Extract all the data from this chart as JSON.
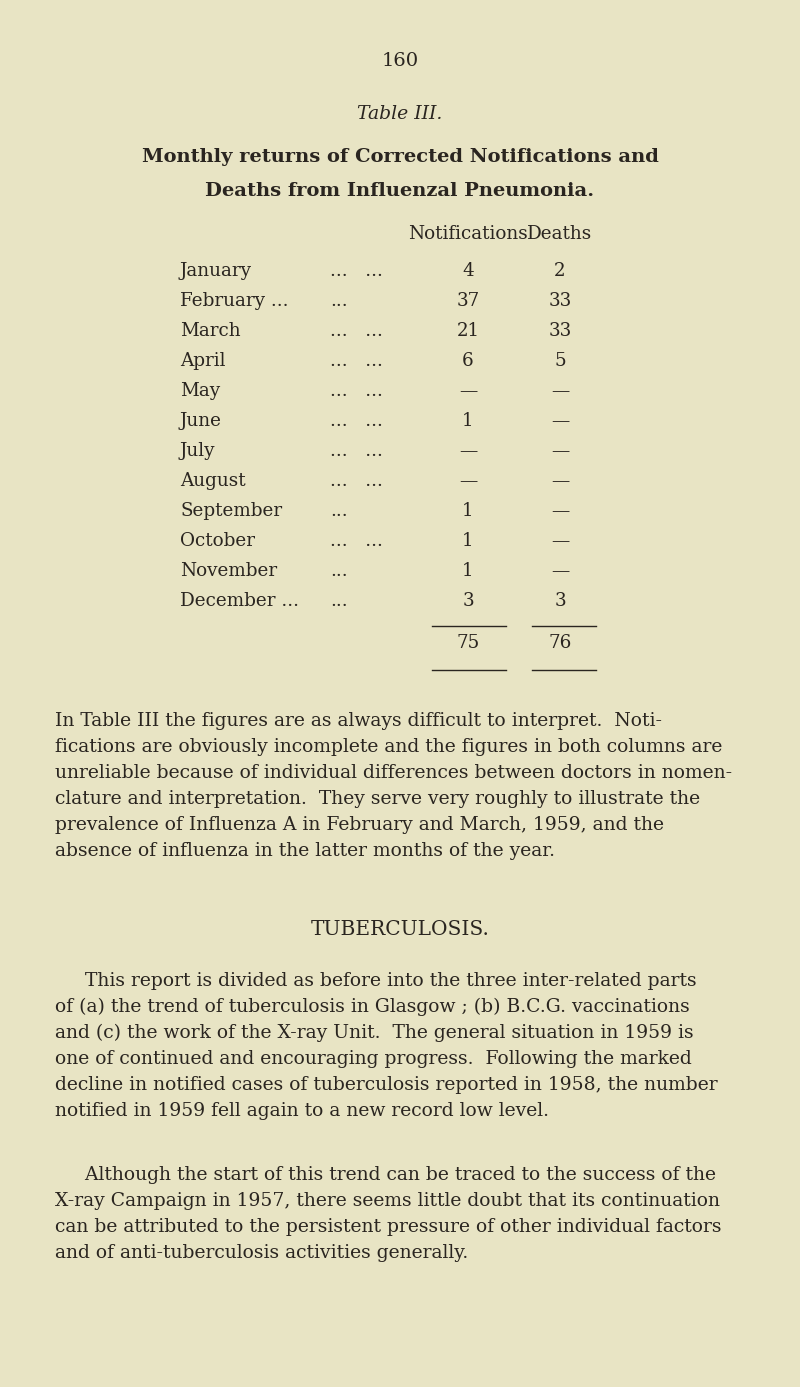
{
  "page_number": "160",
  "table_title_line1": "Table III.",
  "table_title_line2": "Monthly returns of Corrected Notifications and",
  "table_title_line3": "Deaths from Influenzal Pneumonia.",
  "col_header1": "Notifications",
  "col_header2": "Deaths",
  "months_display": [
    [
      "January",
      "...   ..."
    ],
    [
      "February ...",
      "..."
    ],
    [
      "March",
      "...   ..."
    ],
    [
      "April",
      "...   ..."
    ],
    [
      "May",
      "...   ..."
    ],
    [
      "June",
      "...   ..."
    ],
    [
      "July",
      "...   ..."
    ],
    [
      "August",
      "...   ..."
    ],
    [
      "September",
      "..."
    ],
    [
      "October",
      "...   ..."
    ],
    [
      "November",
      "..."
    ],
    [
      "December ...",
      "..."
    ]
  ],
  "notifications": [
    "4",
    "37",
    "21",
    "6",
    "—",
    "1",
    "—",
    "—",
    "1",
    "1",
    "1",
    "3"
  ],
  "deaths": [
    "2",
    "33",
    "33",
    "5",
    "—",
    "—",
    "—",
    "—",
    "—",
    "—",
    "—",
    "3"
  ],
  "total_notifications": "75",
  "total_deaths": "76",
  "para1_lines": [
    "In Table III the figures are as always difficult to interpret.  Noti-",
    "fications are obviously incomplete and the figures in both columns are",
    "unreliable because of individual differences between doctors in nomen-",
    "clature and interpretation.  They serve very roughly to illustrate the",
    "prevalence of Influenza A in February and March, 1959, and the",
    "absence of influenza in the latter months of the year."
  ],
  "section_title": "TUBERCULOSIS.",
  "para2_lines": [
    "     This report is divided as before into the three inter-related parts",
    "of (a) the trend of tuberculosis in Glasgow ; (b) B.C.G. vaccinations",
    "and (c) the work of the X-ray Unit.  The general situation in 1959 is",
    "one of continued and encouraging progress.  Following the marked",
    "decline in notified cases of tuberculosis reported in 1958, the number",
    "notified in 1959 fell again to a new record low level."
  ],
  "para3_lines": [
    "     Although the start of this trend can be traced to the success of the",
    "X-ray Campaign in 1957, there seems little doubt that its continuation",
    "can be attributed to the persistent pressure of other individual factors",
    "and of anti-tuberculosis activities generally."
  ],
  "bg_color": "#e8e4c4",
  "text_color": "#2a2520",
  "font_size_body": 13.5,
  "font_size_table": 13.2,
  "font_size_title_italic": 13.5,
  "font_size_title_bold": 14.0,
  "font_size_section": 14.5,
  "font_size_page_num": 14.0
}
